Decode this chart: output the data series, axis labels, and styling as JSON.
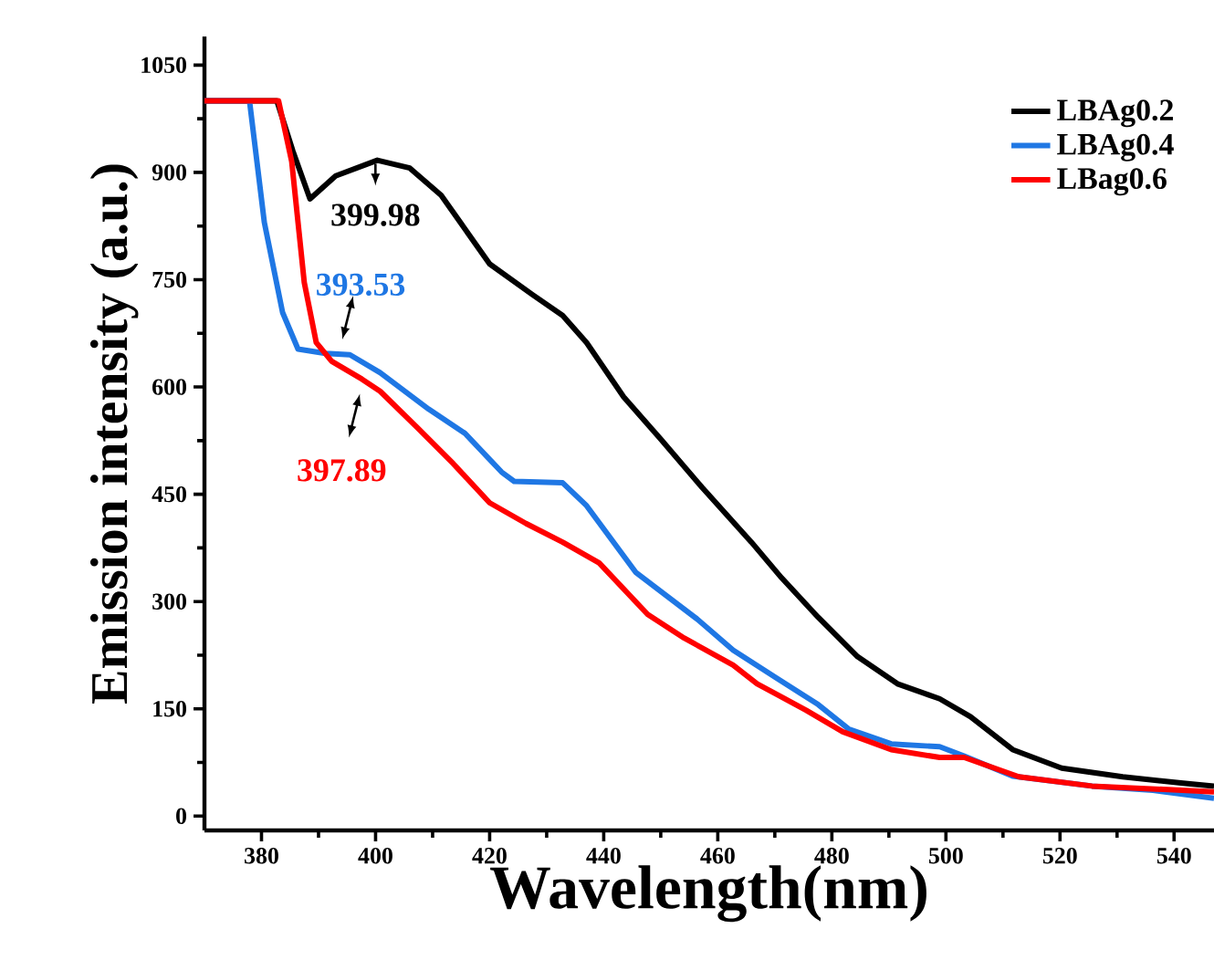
{
  "chart_data": {
    "type": "line",
    "xlabel": "Wavelength(nm)",
    "ylabel": "Emission intensity (a.u.)",
    "xlim": [
      370,
      547
    ],
    "ylim": [
      -20,
      1090
    ],
    "xticks": [
      380,
      400,
      420,
      440,
      460,
      480,
      500,
      520,
      540
    ],
    "yticks": [
      0,
      150,
      300,
      450,
      600,
      750,
      900,
      1050
    ],
    "legend": "top right",
    "grid": false,
    "marker": "none",
    "line_style": "solid",
    "series": [
      {
        "name": "LBAg0.2",
        "color": "#000000",
        "x": [
          370,
          382.7,
          385.5,
          388.5,
          393,
          400.3,
          406,
          411.5,
          420,
          427.5,
          432.8,
          437,
          443.5,
          450,
          457.3,
          465.9,
          471.2,
          477.6,
          484.5,
          491.5,
          498.9,
          504.3,
          511.7,
          520.3,
          531,
          541.6,
          547
        ],
        "values": [
          1000,
          1000,
          930,
          863,
          895,
          917,
          906,
          868,
          772,
          729,
          700,
          662,
          586,
          527,
          459,
          383,
          333,
          278,
          223,
          185,
          164,
          139,
          93,
          67,
          55,
          46,
          42
        ]
      },
      {
        "name": "LBAg0.4",
        "color": "#1f77e4",
        "x": [
          370,
          377.9,
          380.5,
          383.7,
          386.4,
          391.2,
          395.5,
          400.8,
          409.3,
          415.7,
          422.1,
          424.3,
          432.8,
          437,
          445.6,
          456.3,
          462.7,
          470.1,
          477.6,
          482.9,
          490.4,
          498.9,
          503.2,
          511.7,
          525.6,
          536.3,
          547
        ],
        "values": [
          1000,
          1000,
          830,
          704,
          653,
          647,
          645,
          620,
          569,
          535,
          481,
          468,
          466,
          434,
          341,
          276,
          232,
          194,
          156,
          122,
          101,
          97,
          84,
          56,
          42,
          36,
          25
        ]
      },
      {
        "name": "LBag0.6",
        "color": "#ff0000",
        "x": [
          370,
          383,
          385.3,
          387.5,
          389.6,
          392.3,
          397.6,
          400.8,
          407.2,
          413.6,
          420,
          426.4,
          432.8,
          439.2,
          447.7,
          454.1,
          462.7,
          466.9,
          475.5,
          481.9,
          490.4,
          498.9,
          503.2,
          512.8,
          525.6,
          547
        ],
        "values": [
          1000,
          1000,
          915,
          746,
          662,
          636,
          611,
          594,
          544,
          493,
          438,
          409,
          383,
          354,
          282,
          249,
          211,
          185,
          148,
          118,
          93,
          82,
          82,
          55,
          42,
          34
        ]
      }
    ],
    "annotations": [
      {
        "text": "399.98",
        "x": 399.98,
        "y": 917
      },
      {
        "text": "393.53",
        "x": 393.53,
        "y": 646
      },
      {
        "text": "397.89",
        "x": 397.89,
        "y": 611
      }
    ]
  }
}
